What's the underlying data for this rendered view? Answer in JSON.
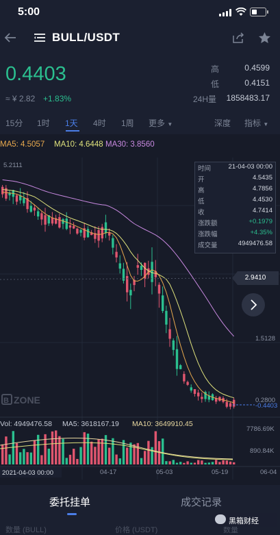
{
  "status_bar": {
    "time": "5:00"
  },
  "header": {
    "pair": "BULL/USDT"
  },
  "price": {
    "last": "0.4403",
    "cny": "≈ ¥ 2.82",
    "change": "+1.83%"
  },
  "stats": [
    {
      "label": "高",
      "value": "0.4599"
    },
    {
      "label": "低",
      "value": "0.4151"
    },
    {
      "label": "24H量",
      "value": "1858483.17"
    }
  ],
  "timeframes": [
    {
      "label": "15分",
      "active": false
    },
    {
      "label": "1时",
      "active": false
    },
    {
      "label": "1天",
      "active": true
    },
    {
      "label": "4时",
      "active": false
    },
    {
      "label": "1周",
      "active": false
    },
    {
      "label": "更多",
      "active": false
    }
  ],
  "tools": {
    "depth": "深度",
    "indicators": "指标"
  },
  "ma": {
    "ma5": "MA5: 4.5057",
    "ma10": "MA10: 4.6448",
    "ma30": "MA30: 3.8560"
  },
  "chart_labels": {
    "high_marker": "5.2111",
    "price_tag": "2.9410",
    "axis_1": "1.5128",
    "axis_2": "0.2800",
    "current": "0.4403",
    "vol_axis_1": "7786.69K",
    "vol_axis_2": "890.84K",
    "watermark": "ZONE"
  },
  "info_box": [
    {
      "k": "时间",
      "v": "21-04-03 00:00"
    },
    {
      "k": "开",
      "v": "4.5435"
    },
    {
      "k": "高",
      "v": "4.7856"
    },
    {
      "k": "低",
      "v": "4.4530"
    },
    {
      "k": "收",
      "v": "4.7414"
    },
    {
      "k": "涨跌额",
      "v": "+0.1979"
    },
    {
      "k": "涨跌幅",
      "v": "+4.35%"
    },
    {
      "k": "成交量",
      "v": "4949476.58"
    }
  ],
  "volume": {
    "vol": "Vol: 4949476.58",
    "ma5": "MA5: 3618167.19",
    "ma10": "MA10: 3649910.45"
  },
  "x_axis": {
    "cursor": "2021-04-03 00:00",
    "d1": "04-17",
    "d2": "05-03",
    "d3": "05-19",
    "d4": "06-04"
  },
  "bottom": {
    "tab_orders": "委托挂单",
    "tab_trades": "成交记录",
    "col_qty": "数量 (BULL)",
    "col_price": "价格 (USDT)",
    "col_qty2": "数量",
    "watermark": "黑箱财经"
  },
  "colors": {
    "up": "#2bbf8f",
    "down": "#e0566f",
    "accent": "#4b7ee8"
  }
}
